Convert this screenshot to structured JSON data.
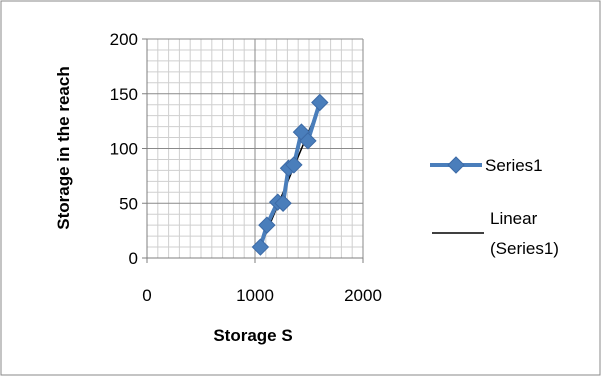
{
  "chart_data": {
    "type": "scatter",
    "xlabel": "Storage S",
    "ylabel": "Storage in the reach",
    "xlim": [
      0,
      2000
    ],
    "ylim": [
      0,
      200
    ],
    "x_major_step": 1000,
    "x_minor_step": 100,
    "y_major_step": 50,
    "y_minor_step": 10,
    "x_ticks": [
      "0",
      "1000",
      "2000"
    ],
    "y_ticks": [
      "0",
      "50",
      "100",
      "150",
      "200"
    ],
    "grid": true,
    "legend_position": "right",
    "series": [
      {
        "name": "Series1",
        "color": "#4a7ebb",
        "marker": "diamond",
        "x": [
          1050,
          1110,
          1210,
          1260,
          1310,
          1360,
          1430,
          1490,
          1600
        ],
        "y": [
          10,
          30,
          51,
          50,
          82,
          85,
          115,
          107,
          142
        ]
      }
    ],
    "trendline": {
      "name_line1": "Linear",
      "name_line2": "(Series1)",
      "color": "#000000",
      "x": [
        1070,
        1610
      ],
      "y": [
        15,
        142
      ]
    }
  }
}
